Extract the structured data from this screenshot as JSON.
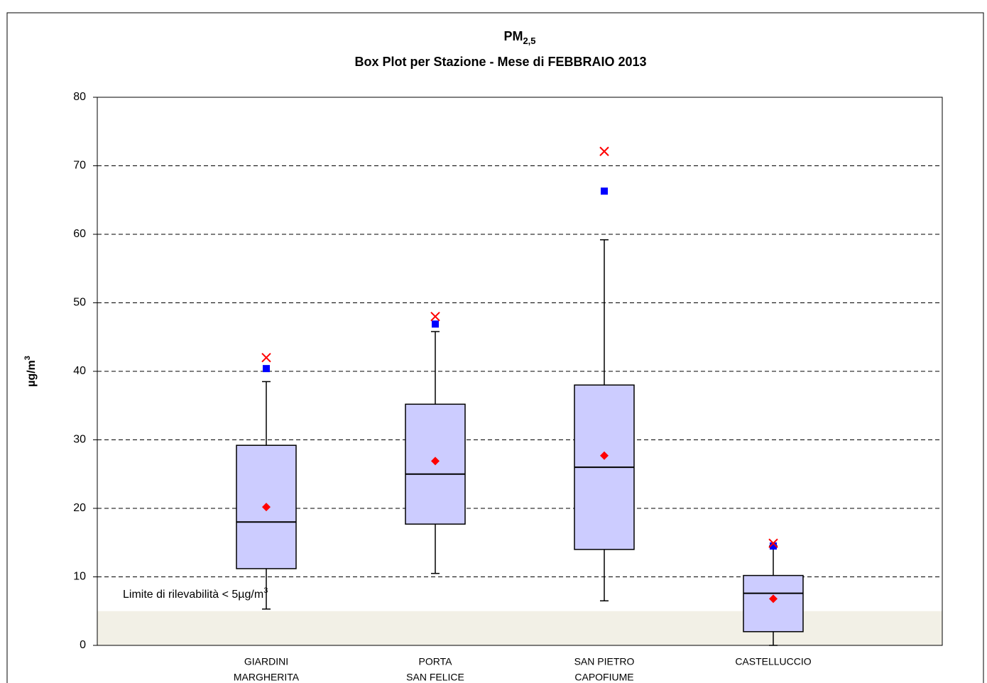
{
  "chart_data": {
    "type": "box",
    "title": "PM",
    "title_subscript": "2,5",
    "subtitle": "Box Plot per Stazione - Mese di FEBBRAIO 2013",
    "ylabel": "µg/m",
    "ylabel_superscript": "3",
    "annotation": "Limite di rilevabilità < 5µg/m",
    "annotation_superscript": "3",
    "threshold": 5,
    "threshold_color": "#f2f0e6",
    "categories": [
      [
        "GIARDINI",
        "MARGHERITA"
      ],
      [
        "PORTA",
        "SAN FELICE"
      ],
      [
        "SAN PIETRO",
        "CAPOFIUME"
      ],
      [
        "CASTELLUCCIO"
      ]
    ],
    "whisker_low": [
      5.3,
      10.5,
      6.5,
      0
    ],
    "q1": [
      11.2,
      17.7,
      14,
      2
    ],
    "median": [
      18,
      25,
      26,
      7.6
    ],
    "q3": [
      29.2,
      35.2,
      38,
      10.2
    ],
    "whisker_high": [
      38.5,
      45.8,
      59.2,
      14.5
    ],
    "mean": [
      20.2,
      26.9,
      27.7,
      6.8
    ],
    "square": [
      40.4,
      46.9,
      66.3,
      14.5
    ],
    "cross": [
      42,
      48,
      72.1,
      14.9
    ],
    "box_color": "#ccccff",
    "mean_color": "#ff0000",
    "square_color": "#0000ff",
    "cross_color": "#ff0000",
    "ylim": [
      0,
      80
    ],
    "yticks": [
      0,
      10,
      20,
      30,
      40,
      50,
      60,
      70,
      80
    ],
    "grid": true
  }
}
